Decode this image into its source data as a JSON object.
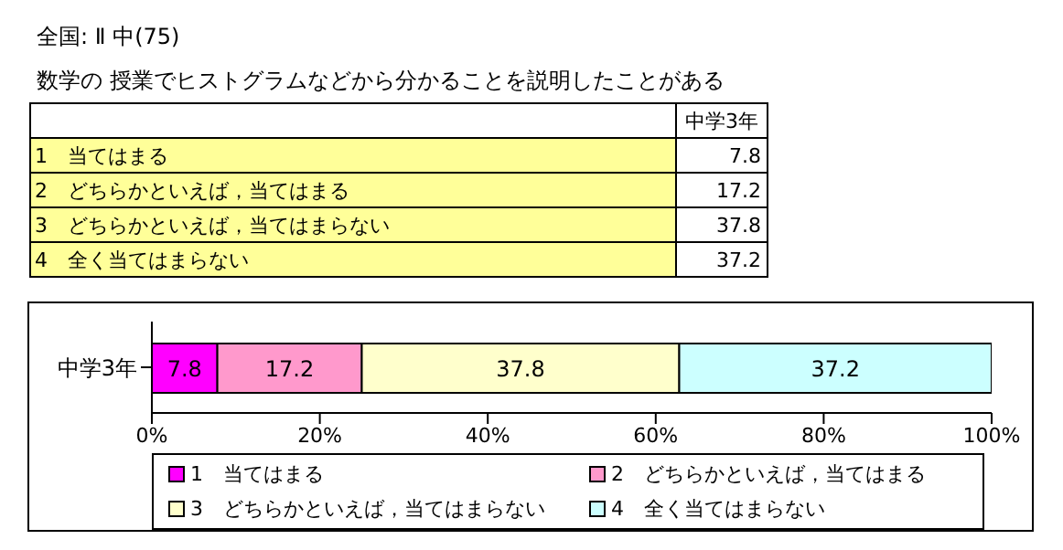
{
  "chart_data": [
    {
      "type": "other",
      "title": "全国: Ⅱ 中(75)",
      "subtitle": "数学の 授業でヒストグラムなどから分かることを説明したことがある",
      "categories": [
        "中学3年"
      ],
      "series": [
        {
          "name": "1　当てはまる",
          "values": [
            7.8
          ]
        },
        {
          "name": "2　どちらかといえば，当てはまる",
          "values": [
            17.2
          ]
        },
        {
          "name": "3　どちらかといえば，当てはまらない",
          "values": [
            37.8
          ]
        },
        {
          "name": "4　全く当てはまらない",
          "values": [
            37.2
          ]
        }
      ],
      "data_labels": true
    },
    {
      "type": "bar",
      "orientation": "horizontal",
      "stacked": true,
      "categories": [
        "中学3年"
      ],
      "series": [
        {
          "name": "1　当てはまる",
          "color": "#ff00ff",
          "values": [
            7.8
          ]
        },
        {
          "name": "2　どちらかといえば，当てはまる",
          "color": "#ff99cc",
          "values": [
            17.2
          ]
        },
        {
          "name": "3　どちらかといえば，当てはまらない",
          "color": "#ffffcc",
          "values": [
            37.8
          ]
        },
        {
          "name": "4　全く当てはまらない",
          "color": "#ccffff",
          "values": [
            37.2
          ]
        }
      ],
      "xlim": [
        0,
        100
      ],
      "xticks": [
        {
          "value": 0,
          "label": "0%"
        },
        {
          "value": 20,
          "label": "20%"
        },
        {
          "value": 40,
          "label": "40%"
        },
        {
          "value": 60,
          "label": "60%"
        },
        {
          "value": 80,
          "label": "80%"
        },
        {
          "value": 100,
          "label": "100%"
        }
      ],
      "data_labels": true,
      "legend": "bottom",
      "grid": false
    }
  ]
}
